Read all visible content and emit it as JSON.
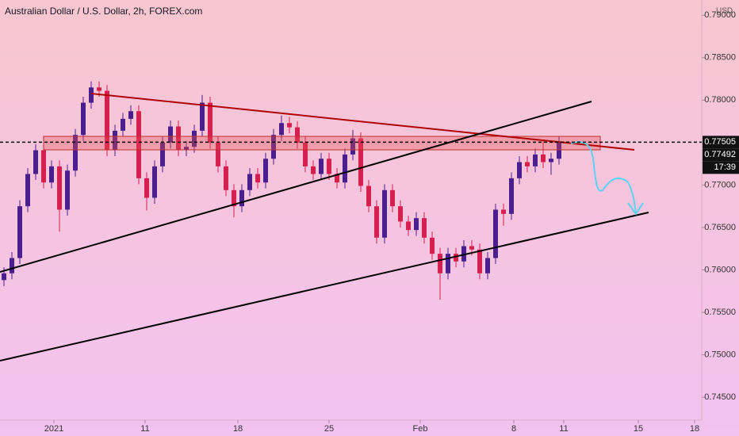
{
  "chart_data": {
    "type": "candlestick",
    "title": "Australian Dollar / U.S. Dollar, 2h, FOREX.com",
    "currency": "USD",
    "up_color": "#4a1f8c",
    "down_color": "#d4204f",
    "grid": false,
    "open": [
      0.7588,
      0.7596,
      0.7614,
      0.7675,
      0.7713,
      0.7741,
      0.7703,
      0.7722,
      0.7671,
      0.7717,
      0.7759,
      0.7797,
      0.7815,
      0.7811,
      0.7741,
      0.7764,
      0.7778,
      0.7787,
      0.7708,
      0.7685,
      0.7722,
      0.775,
      0.7769,
      0.7741,
      0.7745,
      0.7764,
      0.7797,
      0.775,
      0.7722,
      0.7694,
      0.7675,
      0.7694,
      0.7713,
      0.7703,
      0.7731,
      0.7759,
      0.7773,
      0.7768,
      0.775,
      0.7722,
      0.7713,
      0.7731,
      0.7713,
      0.7703,
      0.7736,
      0.7755,
      0.7699,
      0.7675,
      0.7638,
      0.7694,
      0.7675,
      0.7657,
      0.7647,
      0.7661,
      0.7638,
      0.7619,
      0.7596,
      0.7619,
      0.761,
      0.7628,
      0.7624,
      0.7596,
      0.7614,
      0.7671,
      0.7666,
      0.7708,
      0.7727,
      0.7722,
      0.7736,
      0.7727,
      0.7731
    ],
    "high": [
      0.7603,
      0.7621,
      0.7682,
      0.772,
      0.7748,
      0.7748,
      0.7729,
      0.7729,
      0.7724,
      0.7766,
      0.7804,
      0.7822,
      0.7822,
      0.7818,
      0.7771,
      0.7785,
      0.7794,
      0.7794,
      0.7715,
      0.7729,
      0.7757,
      0.7776,
      0.7776,
      0.7752,
      0.7771,
      0.7806,
      0.7804,
      0.7757,
      0.7729,
      0.7701,
      0.7701,
      0.772,
      0.772,
      0.7738,
      0.7766,
      0.7782,
      0.778,
      0.7775,
      0.7757,
      0.7729,
      0.7738,
      0.7738,
      0.772,
      0.7743,
      0.7765,
      0.7762,
      0.7706,
      0.7682,
      0.7701,
      0.7701,
      0.7682,
      0.7664,
      0.7668,
      0.7668,
      0.7645,
      0.7626,
      0.7626,
      0.7626,
      0.7635,
      0.7635,
      0.7631,
      0.7621,
      0.7678,
      0.7678,
      0.7715,
      0.7734,
      0.7734,
      0.7743,
      0.7752,
      0.7738,
      0.7757
    ],
    "low": [
      0.7581,
      0.7589,
      0.7607,
      0.7668,
      0.7706,
      0.7696,
      0.7696,
      0.7645,
      0.7664,
      0.771,
      0.7752,
      0.779,
      0.7804,
      0.7734,
      0.7734,
      0.7757,
      0.7771,
      0.7701,
      0.767,
      0.7678,
      0.7715,
      0.7743,
      0.7734,
      0.7734,
      0.7738,
      0.7757,
      0.7743,
      0.7715,
      0.7687,
      0.7662,
      0.7668,
      0.7687,
      0.7696,
      0.7696,
      0.7724,
      0.7752,
      0.7761,
      0.7743,
      0.7715,
      0.7706,
      0.7706,
      0.7706,
      0.7696,
      0.7696,
      0.7729,
      0.7692,
      0.7668,
      0.7631,
      0.7631,
      0.7668,
      0.765,
      0.764,
      0.764,
      0.7631,
      0.7612,
      0.7565,
      0.7589,
      0.7603,
      0.7603,
      0.7617,
      0.7589,
      0.7589,
      0.7607,
      0.7652,
      0.7659,
      0.7701,
      0.7715,
      0.7715,
      0.772,
      0.7712,
      0.7724
    ],
    "close": [
      0.7596,
      0.7614,
      0.7675,
      0.7713,
      0.7741,
      0.7703,
      0.7722,
      0.7671,
      0.7717,
      0.7759,
      0.7797,
      0.7815,
      0.7811,
      0.7741,
      0.7764,
      0.7778,
      0.7787,
      0.7708,
      0.7685,
      0.7722,
      0.775,
      0.7769,
      0.7741,
      0.7745,
      0.7764,
      0.7797,
      0.775,
      0.7722,
      0.7694,
      0.7675,
      0.7694,
      0.7713,
      0.7703,
      0.7731,
      0.7759,
      0.7773,
      0.7768,
      0.775,
      0.7722,
      0.7713,
      0.7731,
      0.7713,
      0.7703,
      0.7736,
      0.7755,
      0.7699,
      0.7675,
      0.7638,
      0.7694,
      0.7675,
      0.7657,
      0.7647,
      0.7661,
      0.7638,
      0.7619,
      0.7596,
      0.7619,
      0.761,
      0.7628,
      0.7624,
      0.7596,
      0.7614,
      0.7671,
      0.7666,
      0.7708,
      0.7727,
      0.7722,
      0.7736,
      0.7727,
      0.7731,
      0.775
    ],
    "xlim": [
      -0.5,
      88
    ],
    "xticks": [
      {
        "value": 6.3,
        "label": "2021"
      },
      {
        "value": 17.8,
        "label": "11"
      },
      {
        "value": 29.5,
        "label": "18"
      },
      {
        "value": 41,
        "label": "25"
      },
      {
        "value": 52.5,
        "label": "Feb"
      },
      {
        "value": 64.3,
        "label": "8"
      },
      {
        "value": 70.6,
        "label": "11"
      },
      {
        "value": 80,
        "label": "15"
      },
      {
        "value": 87.1,
        "label": "18"
      }
    ],
    "ylim": [
      0.7423,
      0.7918
    ],
    "yticks": [
      {
        "value": 0.745,
        "label": "0.74500"
      },
      {
        "value": 0.75,
        "label": "0.75000"
      },
      {
        "value": 0.755,
        "label": "0.75500"
      },
      {
        "value": 0.76,
        "label": "0.76000"
      },
      {
        "value": 0.765,
        "label": "0.76500"
      },
      {
        "value": 0.77,
        "label": "0.77000"
      },
      {
        "value": 0.78,
        "label": "0.78000"
      },
      {
        "value": 0.785,
        "label": "0.78500"
      },
      {
        "value": 0.79,
        "label": "0.79000"
      }
    ],
    "price_tags": [
      {
        "value": 0.77505,
        "label": "0.77505"
      },
      {
        "value": 0.77492,
        "label": "0.77492"
      }
    ],
    "countdown": "17:39"
  }
}
